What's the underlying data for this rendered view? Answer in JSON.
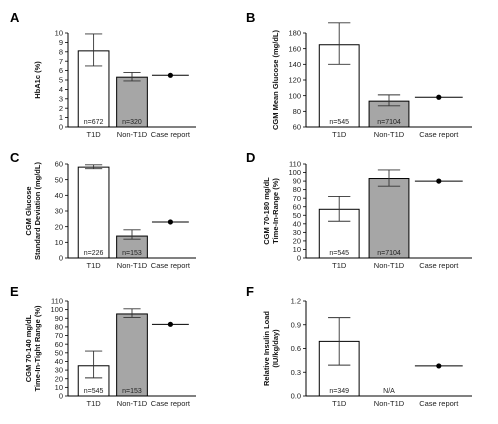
{
  "chart_data": [
    {
      "panel": "A",
      "type": "bar",
      "categories": [
        "T1D",
        "Non-T1D",
        "Case report"
      ],
      "ylabel": "HbA1c  (%)",
      "ylim": [
        0,
        10
      ],
      "yticks": [
        0,
        1,
        2,
        3,
        4,
        5,
        6,
        7,
        8,
        9,
        10
      ],
      "bars": [
        {
          "category": "T1D",
          "value": 8.1,
          "err_low": 6.5,
          "err_high": 9.9,
          "n_label": "n=672",
          "fill": "#ffffff"
        },
        {
          "category": "Non-T1D",
          "value": 5.3,
          "err_low": 4.9,
          "err_high": 5.8,
          "n_label": "n=320",
          "fill": "#a6a6a6"
        }
      ],
      "case_report": 5.5,
      "na_label": ""
    },
    {
      "panel": "B",
      "type": "bar",
      "categories": [
        "T1D",
        "Non-T1D",
        "Case report"
      ],
      "ylabel": "CGM Mean Glucose (mg/dL)",
      "ylim": [
        60,
        180
      ],
      "yticks": [
        60,
        80,
        100,
        120,
        140,
        160,
        180
      ],
      "bars": [
        {
          "category": "T1D",
          "value": 165,
          "err_low": 140,
          "err_high": 193,
          "n_label": "n=545",
          "fill": "#ffffff"
        },
        {
          "category": "Non-T1D",
          "value": 93,
          "err_low": 87,
          "err_high": 101,
          "n_label": "n=7104",
          "fill": "#a6a6a6"
        }
      ],
      "case_report": 98,
      "na_label": ""
    },
    {
      "panel": "C",
      "type": "bar",
      "categories": [
        "T1D",
        "Non-T1D",
        "Case report"
      ],
      "ylabel": "CGM Glucose\nStandard Deviation (mg/dL)",
      "ylim": [
        0,
        60
      ],
      "yticks": [
        0,
        10,
        20,
        30,
        40,
        50,
        60
      ],
      "bars": [
        {
          "category": "T1D",
          "value": 58,
          "err_low": 57,
          "err_high": 59.5,
          "n_label": "n=226",
          "fill": "#ffffff"
        },
        {
          "category": "Non-T1D",
          "value": 14,
          "err_low": 12,
          "err_high": 18,
          "n_label": "n=153",
          "fill": "#a6a6a6"
        }
      ],
      "case_report": 23,
      "na_label": ""
    },
    {
      "panel": "D",
      "type": "bar",
      "categories": [
        "T1D",
        "Non-T1D",
        "Case report"
      ],
      "ylabel": "CGM 70-180 mg/dL\nTime-In-Range (%)",
      "ylim": [
        0,
        110
      ],
      "yticks": [
        0,
        10,
        20,
        30,
        40,
        50,
        60,
        70,
        80,
        90,
        100,
        110
      ],
      "bars": [
        {
          "category": "T1D",
          "value": 57,
          "err_low": 43,
          "err_high": 72,
          "n_label": "n=545",
          "fill": "#ffffff"
        },
        {
          "category": "Non-T1D",
          "value": 93,
          "err_low": 84,
          "err_high": 103,
          "n_label": "n=7104",
          "fill": "#a6a6a6"
        }
      ],
      "case_report": 90,
      "na_label": ""
    },
    {
      "panel": "E",
      "type": "bar",
      "categories": [
        "T1D",
        "Non-T1D",
        "Case report"
      ],
      "ylabel": "CGM 70-140 mg/dL\nTime-In-Tight Range (%)",
      "ylim": [
        0,
        110
      ],
      "yticks": [
        0,
        10,
        20,
        30,
        40,
        50,
        60,
        70,
        80,
        90,
        100,
        110
      ],
      "bars": [
        {
          "category": "T1D",
          "value": 35,
          "err_low": 21,
          "err_high": 52,
          "n_label": "n=545",
          "fill": "#ffffff"
        },
        {
          "category": "Non-T1D",
          "value": 95,
          "err_low": 91,
          "err_high": 101,
          "n_label": "n=153",
          "fill": "#a6a6a6"
        }
      ],
      "case_report": 83,
      "na_label": ""
    },
    {
      "panel": "F",
      "type": "bar",
      "categories": [
        "T1D",
        "Non-T1D",
        "Case report"
      ],
      "ylabel": "Relative Insulin Load\n(IU/kg/day)",
      "ylim": [
        0,
        1.2
      ],
      "yticks": [
        0,
        0.3,
        0.6,
        0.9,
        1.2
      ],
      "ytick_labels": [
        "0.0",
        "0.3",
        "0.6",
        "0.9",
        "1.2"
      ],
      "bars": [
        {
          "category": "T1D",
          "value": 0.69,
          "err_low": 0.39,
          "err_high": 0.99,
          "n_label": "n=349",
          "fill": "#ffffff"
        }
      ],
      "case_report": 0.38,
      "na_label": "N/A"
    }
  ]
}
